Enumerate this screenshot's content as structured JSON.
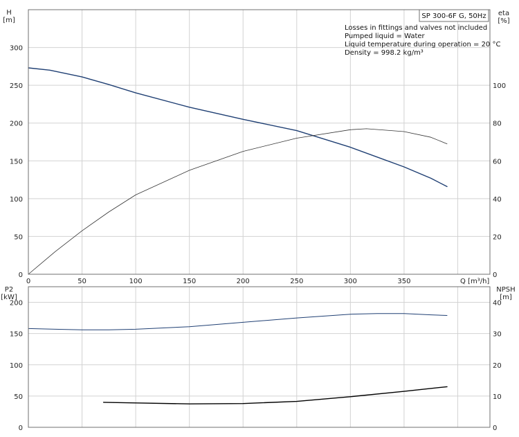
{
  "chart_data": [
    {
      "type": "line",
      "title": "SP 300-6F G, 50Hz",
      "notes": [
        "Losses in fittings and valves not included",
        "Pumped liquid = Water",
        "Liquid temperature during operation = 20 °C",
        "Density = 998.2 kg/m³"
      ],
      "xlabel": "Q [m³/h]",
      "ylabel": "H\n[m]",
      "y2label": "eta\n[%]",
      "xlim": [
        0,
        430
      ],
      "ylim": [
        0,
        350
      ],
      "y2lim": [
        0,
        140
      ],
      "x_ticks": [
        0,
        50,
        100,
        150,
        200,
        250,
        300,
        350
      ],
      "y_ticks": [
        0,
        50,
        100,
        150,
        200,
        250,
        300
      ],
      "y2_ticks": [
        0,
        20,
        40,
        60,
        80,
        100
      ],
      "grid": true,
      "series": [
        {
          "axis": "left",
          "color": "#1f3f73",
          "x": [
            0,
            20,
            50,
            75,
            100,
            150,
            200,
            250,
            300,
            325,
            350,
            375,
            390
          ],
          "values": [
            273,
            270,
            261,
            251,
            240,
            221,
            205,
            190,
            168,
            155,
            142,
            127,
            116
          ]
        },
        {
          "axis": "right",
          "color": "#333333",
          "x": [
            0,
            25,
            50,
            75,
            100,
            150,
            200,
            250,
            300,
            315,
            350,
            375,
            390
          ],
          "values": [
            0,
            12,
            23,
            33,
            42,
            55,
            65,
            72,
            76.5,
            77,
            75.5,
            72.5,
            69
          ]
        }
      ]
    },
    {
      "type": "line",
      "xlim": [
        0,
        430
      ],
      "ylim": [
        0,
        225
      ],
      "y2lim": [
        0,
        45
      ],
      "ylabel": "P2\n[kW]",
      "y2label": "NPSH\n[m]",
      "y_ticks": [
        0,
        50,
        100,
        150,
        200
      ],
      "y2_ticks": [
        0,
        10,
        20,
        30,
        40
      ],
      "grid": true,
      "series": [
        {
          "axis": "left",
          "color": "#1f3f73",
          "x": [
            0,
            25,
            50,
            75,
            100,
            150,
            200,
            250,
            300,
            325,
            350,
            375,
            390
          ],
          "values": [
            158,
            157,
            156,
            156,
            157,
            161,
            168,
            175,
            181,
            182,
            182,
            180,
            179
          ]
        },
        {
          "axis": "right",
          "color": "#000000",
          "x": [
            70,
            100,
            150,
            200,
            250,
            300,
            350,
            390
          ],
          "values": [
            8,
            7.8,
            7.5,
            7.6,
            8.3,
            9.8,
            11.5,
            13
          ]
        }
      ]
    }
  ]
}
